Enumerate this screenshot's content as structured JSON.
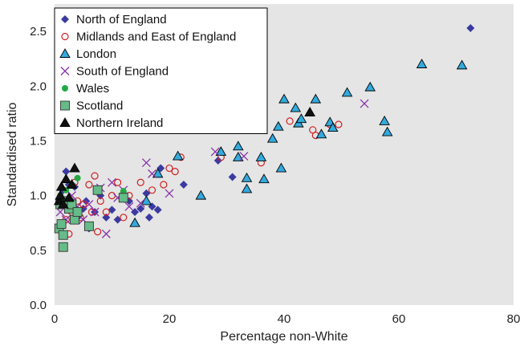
{
  "chart_data": {
    "type": "scatter",
    "title": "",
    "xlabel": "Percentage non-White",
    "ylabel": "Standardised ratio",
    "xlim": [
      0,
      80
    ],
    "ylim": [
      0,
      2.75
    ],
    "x_ticks": [
      "0",
      "20",
      "40",
      "60",
      "80"
    ],
    "y_ticks": [
      "0.0",
      "0.5",
      "1.0",
      "1.5",
      "2.0",
      "2.5"
    ],
    "grid": false,
    "legend_position": "top-left",
    "background": "#e5e5e5",
    "series": [
      {
        "name": "North of England",
        "marker": "diamond",
        "color": "#3a3aa0",
        "points": [
          [
            1.5,
            1.05
          ],
          [
            2,
            1.22
          ],
          [
            2.5,
            1.1
          ],
          [
            3,
            0.95
          ],
          [
            3.5,
            1.08
          ],
          [
            4,
            0.8
          ],
          [
            5,
            0.88
          ],
          [
            5.5,
            0.95
          ],
          [
            6,
            0.7
          ],
          [
            7,
            0.85
          ],
          [
            8,
            1.0
          ],
          [
            9,
            0.8
          ],
          [
            10,
            0.87
          ],
          [
            11,
            0.78
          ],
          [
            12,
            1.0
          ],
          [
            13,
            0.95
          ],
          [
            14,
            0.85
          ],
          [
            15,
            0.88
          ],
          [
            16,
            1.02
          ],
          [
            16.5,
            0.8
          ],
          [
            17,
            0.9
          ],
          [
            18,
            0.87
          ],
          [
            18.5,
            1.25
          ],
          [
            22.5,
            1.1
          ],
          [
            28.5,
            1.32
          ],
          [
            31,
            1.17
          ],
          [
            35,
            1.6
          ],
          [
            72.5,
            2.53
          ]
        ]
      },
      {
        "name": "Midlands and East of England",
        "marker": "circle-open",
        "color": "#d02020",
        "points": [
          [
            2,
            0.78
          ],
          [
            2.5,
            0.65
          ],
          [
            3,
            0.85
          ],
          [
            3.5,
            1.12
          ],
          [
            4,
            0.95
          ],
          [
            4.5,
            0.8
          ],
          [
            5,
            0.92
          ],
          [
            6,
            1.1
          ],
          [
            6.5,
            0.85
          ],
          [
            7,
            1.18
          ],
          [
            7.5,
            0.67
          ],
          [
            8,
            0.95
          ],
          [
            9,
            0.85
          ],
          [
            10,
            1.0
          ],
          [
            11,
            1.12
          ],
          [
            12,
            0.8
          ],
          [
            13,
            1.0
          ],
          [
            15,
            1.12
          ],
          [
            17,
            1.05
          ],
          [
            19,
            1.1
          ],
          [
            20,
            1.25
          ],
          [
            21,
            1.22
          ],
          [
            22,
            1.35
          ],
          [
            29,
            1.35
          ],
          [
            36,
            1.3
          ],
          [
            41,
            1.68
          ],
          [
            45,
            1.6
          ],
          [
            45.5,
            1.55
          ],
          [
            48,
            1.65
          ],
          [
            49.5,
            1.65
          ]
        ]
      },
      {
        "name": "London",
        "marker": "triangle",
        "color": "#33aadd",
        "points": [
          [
            14,
            0.75
          ],
          [
            16,
            0.95
          ],
          [
            18,
            1.2
          ],
          [
            21.5,
            1.36
          ],
          [
            25.5,
            1.0
          ],
          [
            29,
            1.4
          ],
          [
            32,
            1.45
          ],
          [
            32,
            1.35
          ],
          [
            33.5,
            1.16
          ],
          [
            33.5,
            1.06
          ],
          [
            36,
            1.35
          ],
          [
            36.5,
            1.15
          ],
          [
            38,
            1.52
          ],
          [
            39,
            1.63
          ],
          [
            39.5,
            1.25
          ],
          [
            40,
            1.88
          ],
          [
            42,
            1.8
          ],
          [
            42.5,
            1.66
          ],
          [
            43,
            1.7
          ],
          [
            44.5,
            1.76
          ],
          [
            45.5,
            1.88
          ],
          [
            46.5,
            1.56
          ],
          [
            48,
            1.67
          ],
          [
            48.5,
            1.62
          ],
          [
            51,
            1.94
          ],
          [
            55,
            1.99
          ],
          [
            57.5,
            1.68
          ],
          [
            58,
            1.58
          ],
          [
            64,
            2.2
          ],
          [
            71,
            2.19
          ]
        ]
      },
      {
        "name": "South of England",
        "marker": "cross",
        "color": "#8833aa",
        "points": [
          [
            1,
            0.85
          ],
          [
            2,
            0.78
          ],
          [
            3,
            1.0
          ],
          [
            4,
            0.9
          ],
          [
            5,
            0.78
          ],
          [
            6,
            0.92
          ],
          [
            7,
            0.85
          ],
          [
            8,
            1.07
          ],
          [
            9,
            0.65
          ],
          [
            10,
            1.12
          ],
          [
            11,
            0.98
          ],
          [
            12,
            1.05
          ],
          [
            13,
            0.9
          ],
          [
            15,
            0.93
          ],
          [
            16,
            1.3
          ],
          [
            17,
            1.2
          ],
          [
            20,
            1.02
          ],
          [
            28,
            1.4
          ],
          [
            33,
            1.36
          ],
          [
            54,
            1.84
          ]
        ]
      },
      {
        "name": "Wales",
        "marker": "dot",
        "color": "#22aa44",
        "points": [
          [
            1,
            1.0
          ],
          [
            2,
            1.05
          ],
          [
            3,
            1.1
          ],
          [
            4,
            1.16
          ],
          [
            12,
            1.04
          ]
        ]
      },
      {
        "name": "Scotland",
        "marker": "square",
        "color": "#66bb88",
        "points": [
          [
            0.8,
            0.7
          ],
          [
            1,
            0.92
          ],
          [
            1.2,
            0.74
          ],
          [
            1.5,
            0.64
          ],
          [
            1.5,
            0.53
          ],
          [
            2,
            0.95
          ],
          [
            2.5,
            0.88
          ],
          [
            3,
            0.92
          ],
          [
            3.5,
            0.78
          ],
          [
            4,
            0.85
          ],
          [
            6,
            0.72
          ],
          [
            7.5,
            1.05
          ],
          [
            12,
            0.98
          ]
        ]
      },
      {
        "name": "Northern Ireland",
        "marker": "triangle",
        "color": "#111111",
        "points": [
          [
            0.8,
            0.95
          ],
          [
            1,
            1.0
          ],
          [
            1.2,
            1.08
          ],
          [
            1.5,
            0.92
          ],
          [
            2,
            1.15
          ],
          [
            2.5,
            0.98
          ],
          [
            3,
            1.1
          ],
          [
            3.5,
            1.25
          ],
          [
            44.5,
            1.76
          ]
        ]
      }
    ]
  }
}
